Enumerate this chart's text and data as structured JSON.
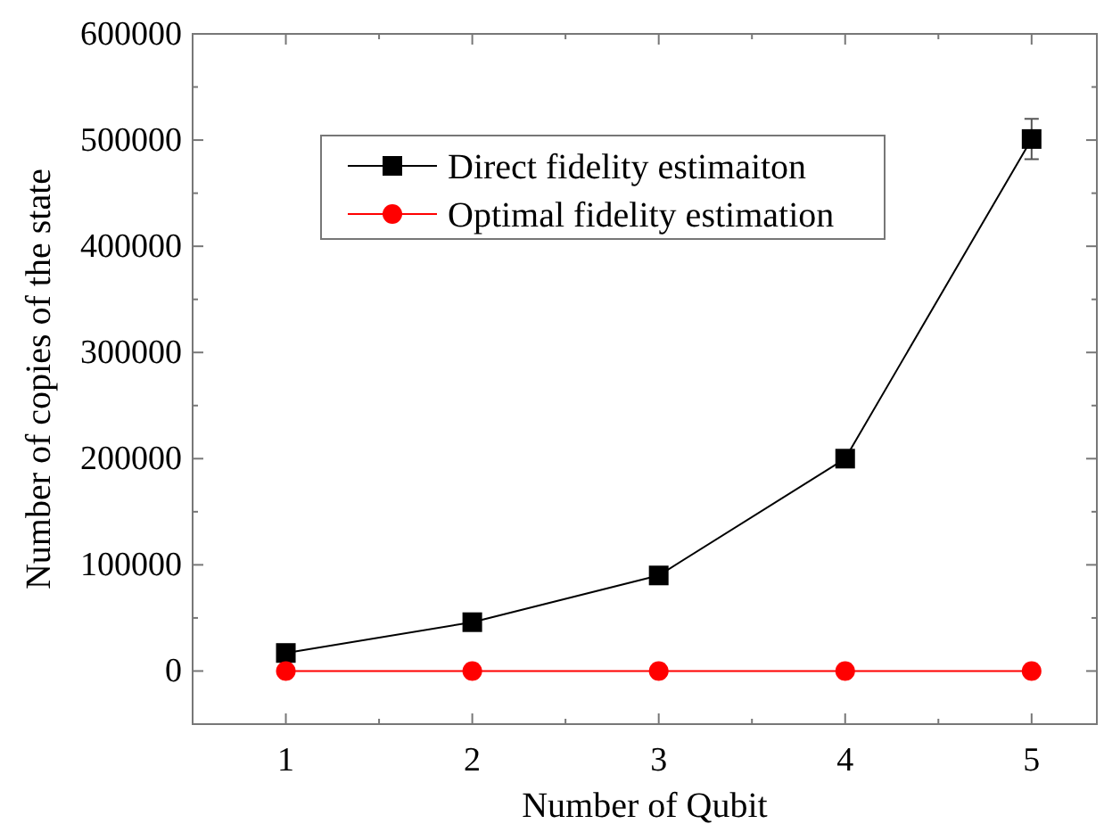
{
  "chart_data": {
    "type": "line",
    "xlabel": "Number of Qubit",
    "ylabel": "Number of copies of the state",
    "x": [
      1,
      2,
      3,
      4,
      5
    ],
    "series": [
      {
        "name": "Direct fidelity estimaiton",
        "color": "#000000",
        "marker": "square",
        "values": [
          17000,
          46000,
          90000,
          200000,
          501000
        ],
        "errors": [
          null,
          null,
          null,
          null,
          19000
        ]
      },
      {
        "name": "Optimal fidelity estimation",
        "color": "#ff0000",
        "marker": "circle",
        "values": [
          0,
          0,
          0,
          0,
          0
        ]
      }
    ],
    "xlim": [
      0.5,
      5.35
    ],
    "xticks": [
      1,
      {
        "value": 1.5,
        "label": null
      },
      2,
      {
        "value": 2.5,
        "label": null
      },
      3,
      {
        "value": 3.5,
        "label": null
      },
      4,
      {
        "value": 4.5,
        "label": null
      },
      5
    ],
    "ylim": [
      -50000,
      600000
    ],
    "yticks": [
      {
        "value": -50000,
        "label": null
      },
      0,
      {
        "value": 50000,
        "label": null
      },
      100000,
      {
        "value": 150000,
        "label": null
      },
      200000,
      {
        "value": 250000,
        "label": null
      },
      300000,
      {
        "value": 350000,
        "label": null
      },
      400000,
      {
        "value": 450000,
        "label": null
      },
      500000,
      {
        "value": 550000,
        "label": null
      },
      600000
    ],
    "grid": false,
    "legend": "top left"
  }
}
